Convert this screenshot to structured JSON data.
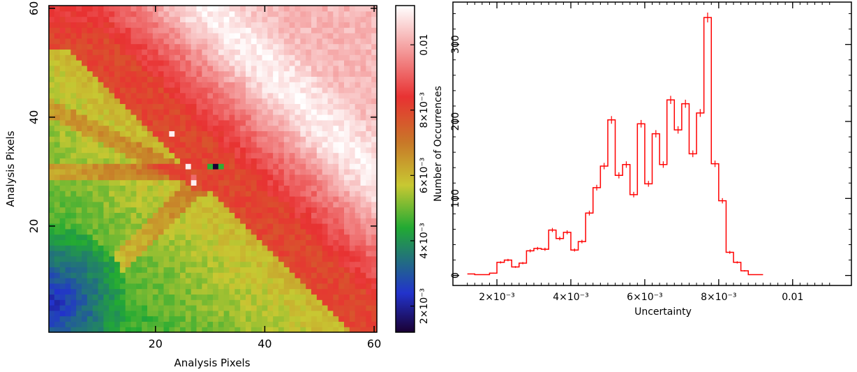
{
  "chart_data": [
    {
      "type": "heatmap",
      "xlabel": "Analysis Pixels",
      "ylabel": "Analysis Pixels",
      "xlim": [
        0.5,
        60.5
      ],
      "ylim": [
        0.5,
        60.5
      ],
      "x_ticks": [
        20,
        40,
        60
      ],
      "y_ticks": [
        20,
        40,
        60
      ],
      "grid_size": [
        60,
        60
      ],
      "colorbar": {
        "range": [
          0.0012,
          0.0112
        ],
        "ticks": [
          {
            "value": 0.002,
            "label": "2×10⁻³"
          },
          {
            "value": 0.004,
            "label": "4×10⁻³"
          },
          {
            "value": 0.006,
            "label": "6×10⁻³"
          },
          {
            "value": 0.008,
            "label": "8×10⁻³"
          },
          {
            "value": 0.01,
            "label": "0.01"
          }
        ],
        "colors": [
          "#1a0033",
          "#2233cc",
          "#22aa33",
          "#c8c832",
          "#c87828",
          "#e83232",
          "#ffffff"
        ]
      },
      "description_regions": {
        "blue_corner_value": 0.0022,
        "green_region_value": 0.0045,
        "yellow_region_value": 0.006,
        "red_region_value": 0.0082,
        "light_region_value": 0.0102,
        "central_feature": {
          "x": 31,
          "y": 31,
          "values": [
            0.0005,
            0.0045
          ]
        }
      }
    },
    {
      "type": "histogram",
      "xlabel": "Uncertainty",
      "ylabel": "Number of Occurrences",
      "xlim": [
        0.00081,
        0.01159
      ],
      "ylim": [
        -13,
        355
      ],
      "x_ticks": [
        {
          "value": 0.002,
          "label": "2×10⁻³"
        },
        {
          "value": 0.004,
          "label": "4×10⁻³"
        },
        {
          "value": 0.006,
          "label": "6×10⁻³"
        },
        {
          "value": 0.008,
          "label": "8×10⁻³"
        },
        {
          "value": 0.01,
          "label": "0.01"
        }
      ],
      "y_ticks": [
        0,
        100,
        200,
        300
      ],
      "color": "#ff0000",
      "bin_start": 0.0012,
      "bin_width": 0.0002,
      "counts": [
        2,
        1,
        1,
        3,
        17,
        20,
        11,
        16,
        32,
        35,
        34,
        59,
        48,
        56,
        33,
        44,
        81,
        114,
        142,
        202,
        130,
        144,
        105,
        197,
        119,
        184,
        144,
        228,
        189,
        223,
        158,
        211,
        335,
        145,
        97,
        30,
        17,
        6,
        1,
        1
      ]
    }
  ]
}
